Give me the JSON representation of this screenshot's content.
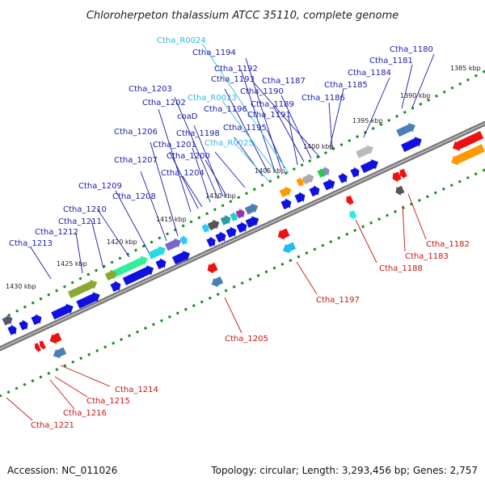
{
  "title": "Chloroherpeton thalassium ATCC 35110, complete genome",
  "footer": {
    "accession": "Accession: NC_011026",
    "summary": "Topology: circular; Length: 3,293,456 bp; Genes: 2,757"
  },
  "colors": {
    "backbone": "#7a7a7a",
    "forward_gene": "#1010e0",
    "reverse_gene": "#ee1111",
    "rna_label": "#33b5e5",
    "tick_dots": "#1a8a1a",
    "blue_label": "#1a1aa8",
    "red_label": "#c81414"
  },
  "ticks": [
    "1385 kbp",
    "1390 kbp",
    "1395 kbp",
    "1400 kbp",
    "1405 kbp",
    "1410 kbp",
    "1415 kbp",
    "1420 kbp",
    "1425 kbp",
    "1430 kbp"
  ],
  "labels_top": [
    {
      "text": "Ctha_R0024",
      "color": "cyan"
    },
    {
      "text": "Ctha_1194",
      "color": "blue"
    },
    {
      "text": "Ctha_1192",
      "color": "blue"
    },
    {
      "text": "Ctha_1193",
      "color": "blue"
    },
    {
      "text": "Ctha_1187",
      "color": "blue"
    },
    {
      "text": "Ctha_1190",
      "color": "blue"
    },
    {
      "text": "Ctha_1203",
      "color": "blue"
    },
    {
      "text": "Ctha_1202",
      "color": "blue"
    },
    {
      "text": "Ctha_R0023",
      "color": "cyan"
    },
    {
      "text": "Ctha_1189",
      "color": "blue"
    },
    {
      "text": "Ctha_1196",
      "color": "blue"
    },
    {
      "text": "Ctha_1191",
      "color": "blue"
    },
    {
      "text": "coaD",
      "color": "blue"
    },
    {
      "text": "Ctha_1195",
      "color": "blue"
    },
    {
      "text": "Ctha_1198",
      "color": "blue"
    },
    {
      "text": "Ctha_1206",
      "color": "blue"
    },
    {
      "text": "Ctha_1201",
      "color": "blue"
    },
    {
      "text": "Ctha_R0025",
      "color": "cyan"
    },
    {
      "text": "Ctha_1200",
      "color": "blue"
    },
    {
      "text": "Ctha_1207",
      "color": "blue"
    },
    {
      "text": "Ctha_1204",
      "color": "blue"
    },
    {
      "text": "Ctha_1209",
      "color": "blue"
    },
    {
      "text": "Ctha_1208",
      "color": "blue"
    },
    {
      "text": "Ctha_1210",
      "color": "blue"
    },
    {
      "text": "Ctha_1211",
      "color": "blue"
    },
    {
      "text": "Ctha_1212",
      "color": "blue"
    },
    {
      "text": "Ctha_1213",
      "color": "blue"
    },
    {
      "text": "Ctha_1180",
      "color": "blue"
    },
    {
      "text": "Ctha_1181",
      "color": "blue"
    },
    {
      "text": "Ctha_1184",
      "color": "blue"
    },
    {
      "text": "Ctha_1185",
      "color": "blue"
    },
    {
      "text": "Ctha_1186",
      "color": "blue"
    }
  ],
  "labels_bottom": [
    {
      "text": "Ctha_1182",
      "color": "red"
    },
    {
      "text": "Ctha_1183",
      "color": "red"
    },
    {
      "text": "Ctha_1188",
      "color": "red"
    },
    {
      "text": "Ctha_1197",
      "color": "red"
    },
    {
      "text": "Ctha_1205",
      "color": "red"
    },
    {
      "text": "Ctha_1214",
      "color": "red"
    },
    {
      "text": "Ctha_1215",
      "color": "red"
    },
    {
      "text": "Ctha_1216",
      "color": "red"
    },
    {
      "text": "Ctha_1221",
      "color": "red"
    }
  ]
}
